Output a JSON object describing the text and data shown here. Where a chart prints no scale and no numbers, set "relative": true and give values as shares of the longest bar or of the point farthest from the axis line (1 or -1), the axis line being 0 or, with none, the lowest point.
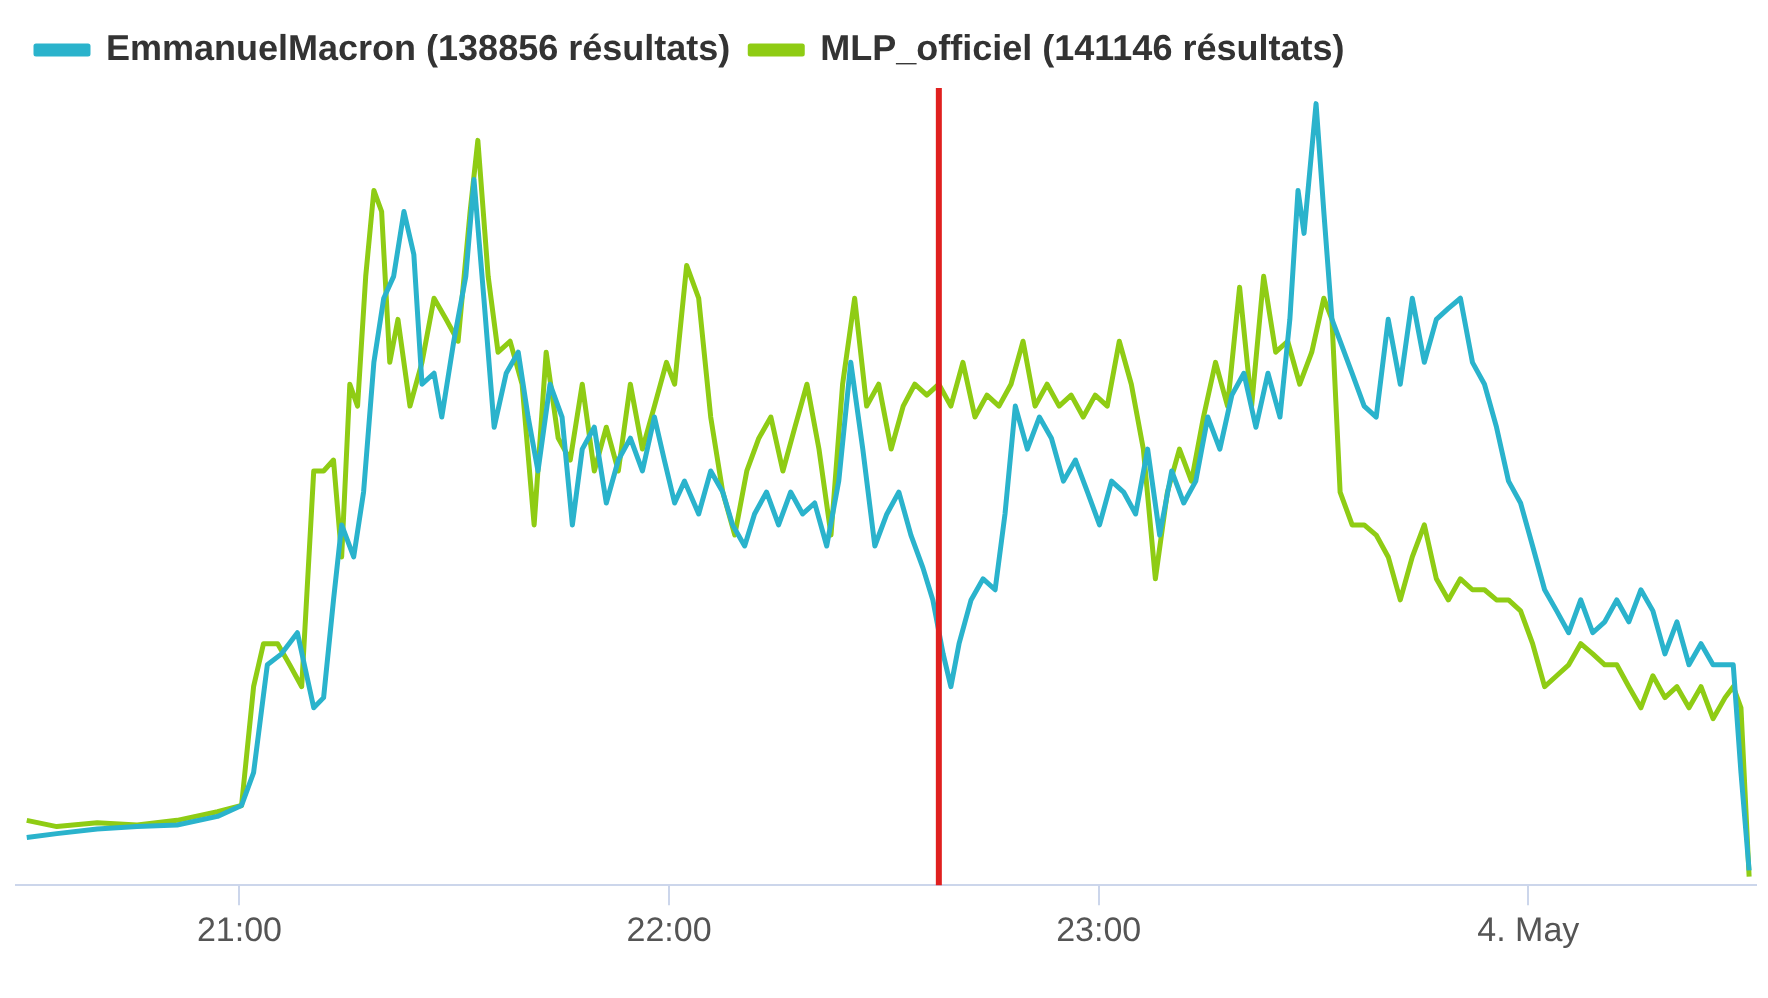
{
  "chart_data": {
    "type": "line",
    "relative": true,
    "legend": "top left",
    "xlim": [
      20.48,
      24.53
    ],
    "xticks": [
      {
        "value": 21,
        "label": "21:00"
      },
      {
        "value": 22,
        "label": "22:00"
      },
      {
        "value": 23,
        "label": "23:00"
      },
      {
        "value": 24,
        "label": "4. May"
      }
    ],
    "ref_lines": [
      {
        "axis": "x",
        "value": 22.628,
        "label": null,
        "color": "#e0201f"
      }
    ],
    "series": [
      {
        "name": "EmmanuelMacron (138856 résultats)",
        "color": "#2ab3cc",
        "x": [
          20.505,
          20.575,
          20.669,
          20.762,
          20.855,
          20.949,
          21.005,
          21.033,
          21.065,
          21.098,
          21.135,
          21.173,
          21.196,
          21.219,
          21.238,
          21.266,
          21.289,
          21.313,
          21.336,
          21.359,
          21.383,
          21.406,
          21.425,
          21.453,
          21.471,
          21.499,
          21.527,
          21.546,
          21.569,
          21.593,
          21.621,
          21.649,
          21.672,
          21.695,
          21.723,
          21.751,
          21.775,
          21.798,
          21.826,
          21.854,
          21.882,
          21.91,
          21.938,
          21.966,
          21.989,
          22.013,
          22.036,
          22.069,
          22.097,
          22.125,
          22.148,
          22.176,
          22.199,
          22.227,
          22.255,
          22.283,
          22.311,
          22.339,
          22.367,
          22.395,
          22.423,
          22.451,
          22.479,
          22.507,
          22.535,
          22.563,
          22.591,
          22.614,
          22.638,
          22.656,
          22.675,
          22.703,
          22.731,
          22.759,
          22.782,
          22.806,
          22.834,
          22.862,
          22.89,
          22.918,
          22.946,
          22.974,
          23.002,
          23.03,
          23.058,
          23.086,
          23.114,
          23.142,
          23.17,
          23.198,
          23.226,
          23.254,
          23.282,
          23.31,
          23.338,
          23.366,
          23.394,
          23.422,
          23.445,
          23.464,
          23.478,
          23.492,
          23.506,
          23.524,
          23.543,
          23.562,
          23.59,
          23.618,
          23.646,
          23.674,
          23.702,
          23.73,
          23.758,
          23.786,
          23.814,
          23.842,
          23.87,
          23.898,
          23.926,
          23.954,
          23.982,
          24.01,
          24.038,
          24.066,
          24.094,
          24.122,
          24.15,
          24.178,
          24.206,
          24.234,
          24.262,
          24.29,
          24.318,
          24.346,
          24.374,
          24.402,
          24.43,
          24.458,
          24.477,
          24.495,
          24.514
        ],
        "values": [
          0.061,
          0.066,
          0.072,
          0.075,
          0.077,
          0.088,
          0.102,
          0.144,
          0.282,
          0.296,
          0.323,
          0.227,
          0.24,
          0.365,
          0.461,
          0.42,
          0.503,
          0.669,
          0.751,
          0.779,
          0.862,
          0.807,
          0.641,
          0.655,
          0.599,
          0.696,
          0.779,
          0.903,
          0.751,
          0.586,
          0.655,
          0.682,
          0.599,
          0.53,
          0.641,
          0.599,
          0.461,
          0.558,
          0.586,
          0.489,
          0.544,
          0.572,
          0.53,
          0.599,
          0.544,
          0.489,
          0.517,
          0.475,
          0.53,
          0.503,
          0.461,
          0.434,
          0.475,
          0.503,
          0.461,
          0.503,
          0.475,
          0.489,
          0.434,
          0.517,
          0.669,
          0.558,
          0.434,
          0.475,
          0.503,
          0.448,
          0.406,
          0.365,
          0.296,
          0.254,
          0.309,
          0.365,
          0.392,
          0.378,
          0.475,
          0.613,
          0.558,
          0.599,
          0.572,
          0.517,
          0.544,
          0.503,
          0.461,
          0.517,
          0.503,
          0.475,
          0.558,
          0.448,
          0.53,
          0.489,
          0.517,
          0.599,
          0.558,
          0.627,
          0.655,
          0.586,
          0.655,
          0.599,
          0.724,
          0.889,
          0.834,
          0.917,
          1.0,
          0.862,
          0.724,
          0.696,
          0.655,
          0.613,
          0.599,
          0.724,
          0.641,
          0.751,
          0.669,
          0.724,
          0.738,
          0.751,
          0.669,
          0.641,
          0.586,
          0.517,
          0.489,
          0.434,
          0.378,
          0.351,
          0.323,
          0.365,
          0.323,
          0.337,
          0.365,
          0.337,
          0.378,
          0.351,
          0.296,
          0.337,
          0.282,
          0.309,
          0.282,
          0.282,
          0.282,
          0.144,
          0.019
        ]
      },
      {
        "name": "MLP_officiel (141146 résultats)",
        "color": "#8fcc14",
        "x": [
          20.505,
          20.575,
          20.669,
          20.762,
          20.855,
          20.949,
          21.005,
          21.033,
          21.056,
          21.089,
          21.117,
          21.145,
          21.173,
          21.196,
          21.219,
          21.238,
          21.257,
          21.275,
          21.294,
          21.313,
          21.331,
          21.35,
          21.369,
          21.397,
          21.425,
          21.453,
          21.481,
          21.509,
          21.537,
          21.555,
          21.579,
          21.602,
          21.63,
          21.658,
          21.686,
          21.714,
          21.742,
          21.77,
          21.798,
          21.826,
          21.854,
          21.882,
          21.91,
          21.938,
          21.966,
          21.994,
          22.013,
          22.041,
          22.069,
          22.097,
          22.125,
          22.153,
          22.181,
          22.209,
          22.237,
          22.265,
          22.293,
          22.321,
          22.349,
          22.377,
          22.404,
          22.432,
          22.46,
          22.488,
          22.517,
          22.545,
          22.572,
          22.6,
          22.628,
          22.656,
          22.684,
          22.712,
          22.74,
          22.768,
          22.796,
          22.824,
          22.852,
          22.88,
          22.908,
          22.936,
          22.964,
          22.992,
          23.02,
          23.048,
          23.076,
          23.104,
          23.132,
          23.16,
          23.188,
          23.216,
          23.244,
          23.272,
          23.3,
          23.328,
          23.356,
          23.384,
          23.412,
          23.44,
          23.468,
          23.496,
          23.524,
          23.543,
          23.562,
          23.59,
          23.618,
          23.646,
          23.674,
          23.702,
          23.73,
          23.758,
          23.786,
          23.814,
          23.842,
          23.87,
          23.898,
          23.926,
          23.954,
          23.982,
          24.01,
          24.038,
          24.066,
          24.094,
          24.122,
          24.15,
          24.178,
          24.206,
          24.234,
          24.262,
          24.29,
          24.318,
          24.346,
          24.374,
          24.402,
          24.43,
          24.458,
          24.477,
          24.495,
          24.514
        ],
        "values": [
          0.083,
          0.075,
          0.08,
          0.077,
          0.083,
          0.094,
          0.102,
          0.254,
          0.309,
          0.309,
          0.282,
          0.254,
          0.53,
          0.53,
          0.544,
          0.42,
          0.641,
          0.613,
          0.779,
          0.889,
          0.862,
          0.669,
          0.724,
          0.613,
          0.669,
          0.751,
          0.724,
          0.696,
          0.862,
          0.953,
          0.779,
          0.682,
          0.696,
          0.641,
          0.461,
          0.682,
          0.572,
          0.544,
          0.641,
          0.53,
          0.586,
          0.53,
          0.641,
          0.558,
          0.613,
          0.669,
          0.641,
          0.793,
          0.751,
          0.599,
          0.503,
          0.448,
          0.53,
          0.572,
          0.599,
          0.53,
          0.586,
          0.641,
          0.558,
          0.448,
          0.641,
          0.751,
          0.613,
          0.641,
          0.558,
          0.613,
          0.641,
          0.627,
          0.641,
          0.613,
          0.669,
          0.599,
          0.627,
          0.613,
          0.641,
          0.696,
          0.613,
          0.641,
          0.613,
          0.627,
          0.599,
          0.627,
          0.613,
          0.696,
          0.641,
          0.558,
          0.392,
          0.503,
          0.558,
          0.517,
          0.599,
          0.669,
          0.613,
          0.765,
          0.613,
          0.779,
          0.682,
          0.696,
          0.641,
          0.682,
          0.751,
          0.724,
          0.503,
          0.461,
          0.461,
          0.448,
          0.42,
          0.365,
          0.42,
          0.461,
          0.392,
          0.365,
          0.392,
          0.378,
          0.378,
          0.365,
          0.365,
          0.351,
          0.309,
          0.254,
          0.268,
          0.282,
          0.309,
          0.296,
          0.282,
          0.282,
          0.254,
          0.227,
          0.268,
          0.24,
          0.254,
          0.227,
          0.254,
          0.213,
          0.24,
          0.254,
          0.227,
          0.011
        ]
      }
    ]
  }
}
